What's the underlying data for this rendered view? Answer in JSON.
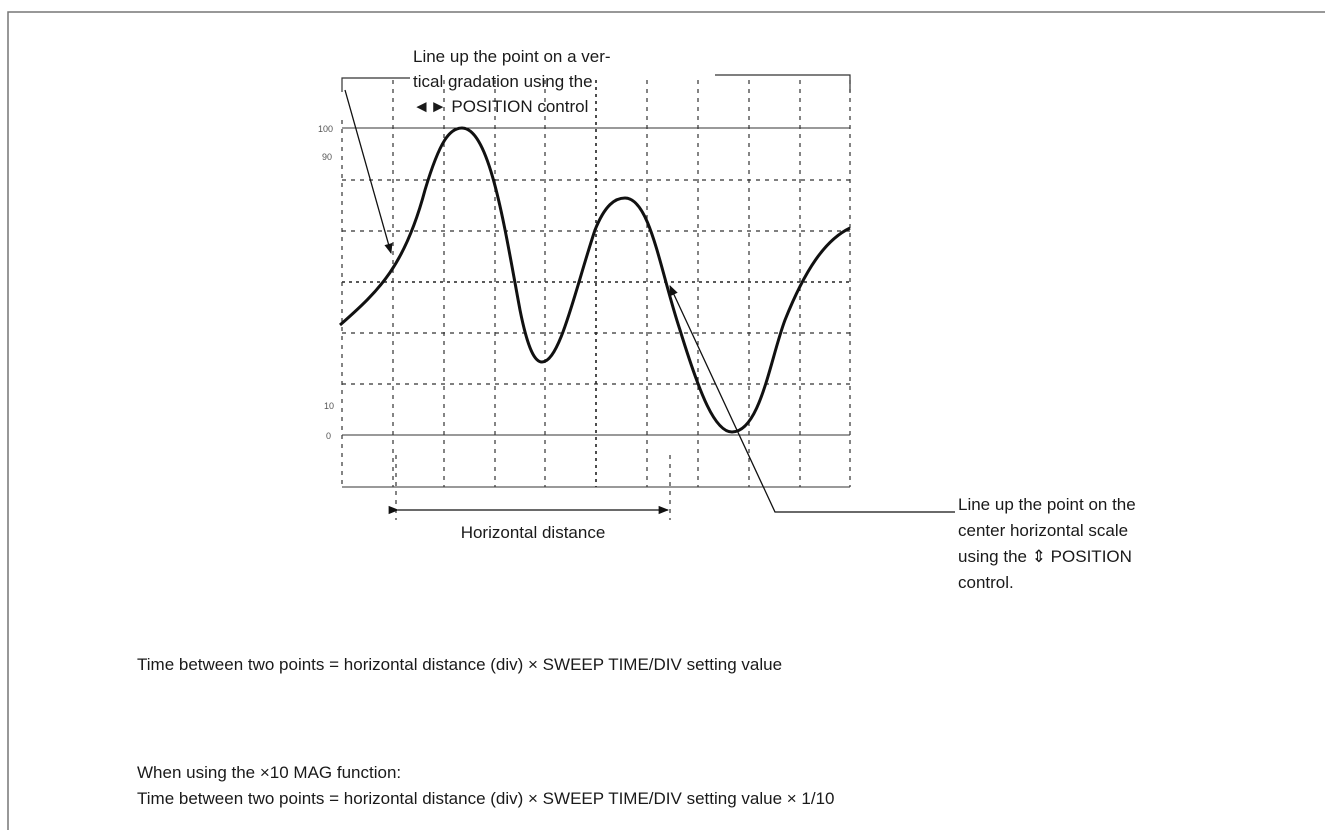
{
  "callouts": [
    {
      "lines": [
        "Line up the point on a ver-",
        "tical gradation using the",
        "◄► POSITION control"
      ]
    },
    {
      "lines": [
        "Line up the point on the",
        "center horizontal scale",
        "using the ⇕ POSITION",
        "control."
      ]
    }
  ],
  "scale_labels": [
    "100",
    "90",
    "10",
    "0"
  ],
  "dimension_label": "Horizontal distance",
  "formulas": {
    "main": "Time between two points = horizontal distance (div) × SWEEP TIME/DIV setting value",
    "mag_heading": "When using the ×10 MAG function:",
    "mag": "Time between two points = horizontal distance (div) × SWEEP TIME/DIV setting value × 1/10"
  }
}
